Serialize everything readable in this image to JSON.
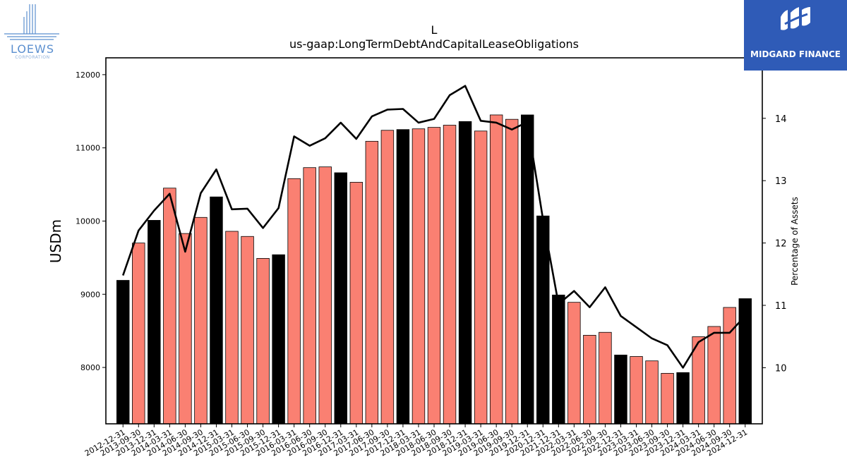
{
  "chart_data": {
    "type": "bar",
    "title": "L",
    "subtitle": "us-gaap:LongTermDebtAndCapitalLeaseObligations",
    "ylabel": "USDm",
    "y2label": "Percentage of Assets",
    "ylim": [
      7230,
      12230
    ],
    "y2lim": [
      9.1,
      14.97
    ],
    "yticks": [
      8000,
      9000,
      10000,
      11000,
      12000
    ],
    "y2ticks": [
      10,
      11,
      12,
      13,
      14
    ],
    "categories": [
      "2012-12-31",
      "2013-09-30",
      "2013-12-31",
      "2014-03-31",
      "2014-06-30",
      "2014-09-30",
      "2014-12-31",
      "2015-03-31",
      "2015-06-30",
      "2015-09-30",
      "2015-12-31",
      "2016-03-31",
      "2016-06-30",
      "2016-09-30",
      "2016-12-31",
      "2017-03-31",
      "2017-06-30",
      "2017-09-30",
      "2017-12-31",
      "2018-03-31",
      "2018-06-30",
      "2018-09-30",
      "2018-12-31",
      "2019-03-31",
      "2019-06-30",
      "2019-09-30",
      "2019-12-31",
      "2020-12-31",
      "2021-12-31",
      "2022-03-31",
      "2022-06-30",
      "2022-09-30",
      "2022-12-31",
      "2023-03-31",
      "2023-06-30",
      "2023-09-30",
      "2023-12-31",
      "2024-03-31",
      "2024-06-30",
      "2024-09-30",
      "2024-12-31"
    ],
    "series": [
      {
        "type": "bar",
        "values": [
          9190,
          9700,
          10010,
          10450,
          9830,
          10050,
          10330,
          9860,
          9790,
          9490,
          9540,
          10580,
          10730,
          10740,
          10660,
          10530,
          11090,
          11240,
          11250,
          11260,
          11280,
          11310,
          11360,
          11230,
          11450,
          11390,
          11450,
          10070,
          8990,
          8890,
          8440,
          8480,
          8170,
          8150,
          8090,
          7920,
          7930,
          8420,
          8560,
          8820,
          8940
        ],
        "colors": [
          "#000000",
          "#fa8072",
          "#000000",
          "#fa8072",
          "#fa8072",
          "#fa8072",
          "#000000",
          "#fa8072",
          "#fa8072",
          "#fa8072",
          "#000000",
          "#fa8072",
          "#fa8072",
          "#fa8072",
          "#000000",
          "#fa8072",
          "#fa8072",
          "#fa8072",
          "#000000",
          "#fa8072",
          "#fa8072",
          "#fa8072",
          "#000000",
          "#fa8072",
          "#fa8072",
          "#fa8072",
          "#000000",
          "#000000",
          "#000000",
          "#fa8072",
          "#fa8072",
          "#fa8072",
          "#000000",
          "#fa8072",
          "#fa8072",
          "#fa8072",
          "#000000",
          "#fa8072",
          "#fa8072",
          "#fa8072",
          "#000000"
        ]
      },
      {
        "type": "line",
        "axis": "right",
        "color": "#000000",
        "values": [
          11.48,
          12.2,
          12.52,
          12.79,
          11.86,
          12.8,
          13.18,
          12.54,
          12.55,
          12.24,
          12.56,
          13.71,
          13.56,
          13.68,
          13.93,
          13.67,
          14.03,
          14.14,
          14.15,
          13.93,
          13.99,
          14.37,
          14.52,
          13.96,
          13.93,
          13.82,
          13.94,
          12.38,
          11.02,
          11.23,
          10.97,
          11.29,
          10.83,
          10.65,
          10.47,
          10.36,
          10.0,
          10.41,
          10.56,
          10.56,
          10.83
        ]
      }
    ],
    "edgecolor": "#000000",
    "grid": false,
    "legend": "none"
  },
  "logos": {
    "left_text": "LOEWS",
    "left_subtext": "CORPORATION",
    "right_text": "MIDGARD FINANCE",
    "left_color": "#5b8fcf",
    "right_bg": "#2f5bb7"
  }
}
